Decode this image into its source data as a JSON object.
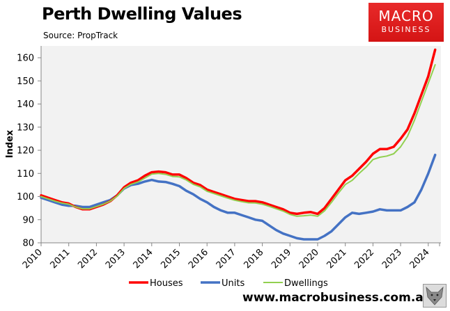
{
  "header": {
    "title": "Perth Dwelling Values",
    "subtitle": "Source: PropTrack",
    "logo_line1": "MACRO",
    "logo_line2": "BUSINESS"
  },
  "footer": {
    "url": "www.macrobusiness.com.au"
  },
  "colors": {
    "houses": "#ff0000",
    "units": "#4472c4",
    "dwellings": "#92d050",
    "plot_bg": "#f2f2f2",
    "axis": "#868686"
  },
  "chart_data": {
    "type": "line",
    "title": "Perth Dwelling Values",
    "subtitle": "Source: PropTrack",
    "xlabel": "",
    "ylabel": "Index",
    "xlim": [
      2010,
      2024.83
    ],
    "ylim": [
      80,
      165
    ],
    "yticks": [
      80,
      90,
      100,
      110,
      120,
      130,
      140,
      150,
      160
    ],
    "xticks": [
      "2010",
      "2011",
      "2012",
      "2013",
      "2014",
      "2015",
      "2016",
      "2017",
      "2018",
      "2019",
      "2020",
      "2021",
      "2022",
      "2023",
      "2024"
    ],
    "grid": false,
    "legend_position": "bottom",
    "x": [
      2010,
      2010.25,
      2010.5,
      2010.75,
      2011,
      2011.25,
      2011.5,
      2011.75,
      2012,
      2012.25,
      2012.5,
      2012.75,
      2013,
      2013.25,
      2013.5,
      2013.75,
      2014,
      2014.25,
      2014.5,
      2014.75,
      2015,
      2015.25,
      2015.5,
      2015.75,
      2016,
      2016.25,
      2016.5,
      2016.75,
      2017,
      2017.25,
      2017.5,
      2017.75,
      2018,
      2018.25,
      2018.5,
      2018.75,
      2019,
      2019.25,
      2019.5,
      2019.75,
      2020,
      2020.25,
      2020.5,
      2020.75,
      2021,
      2021.25,
      2021.5,
      2021.75,
      2022,
      2022.25,
      2022.5,
      2022.75,
      2023,
      2023.25,
      2023.5,
      2023.75,
      2024,
      2024.25
    ],
    "series": [
      {
        "name": "Houses",
        "values": [
          100.5,
          99.5,
          98.5,
          97.5,
          97,
          95.5,
          94.5,
          94.5,
          95.5,
          96.5,
          98,
          100.5,
          104,
          106,
          107,
          109,
          110.5,
          110.8,
          110.5,
          109.5,
          109.5,
          108,
          106,
          105,
          103,
          102,
          101,
          100,
          99,
          98.5,
          98,
          98,
          97.5,
          96.5,
          95.5,
          94.5,
          93,
          92.5,
          93,
          93.3,
          92.5,
          95,
          99,
          103,
          107,
          109,
          112,
          115,
          118.5,
          120.5,
          120.5,
          121.5,
          125,
          129,
          136,
          144,
          152,
          163.5
        ]
      },
      {
        "name": "Units",
        "values": [
          99.5,
          98.5,
          97.5,
          96.5,
          96,
          96,
          95.5,
          95.5,
          96.5,
          97.5,
          98.5,
          100.5,
          103.5,
          105,
          105.5,
          106.5,
          107.2,
          106.5,
          106.3,
          105.5,
          104.5,
          102.5,
          101,
          99,
          97.5,
          95.5,
          94,
          93,
          93,
          92,
          91,
          90,
          89.5,
          87.5,
          85.5,
          84,
          83,
          82,
          81.5,
          81.5,
          81.5,
          83,
          85,
          88,
          91,
          93,
          92.5,
          93,
          93.5,
          94.5,
          94,
          94,
          94,
          95.5,
          97.5,
          103,
          110,
          118
        ]
      },
      {
        "name": "Dwellings",
        "values": [
          100,
          99,
          98,
          97.2,
          96.7,
          95.5,
          94.7,
          94.7,
          95.7,
          96.7,
          98,
          100.2,
          103.5,
          105.3,
          106.3,
          108,
          109.7,
          110,
          109.6,
          108.7,
          108.5,
          107.2,
          105.3,
          104.2,
          102.3,
          101.3,
          100.3,
          99.3,
          98.4,
          97.8,
          97.3,
          97.2,
          96.7,
          95.8,
          94.7,
          93.7,
          92.3,
          91.5,
          91.7,
          92,
          91.5,
          93.8,
          97.5,
          101.5,
          105.2,
          107,
          110,
          112.7,
          116,
          117,
          117.5,
          118.5,
          121.5,
          126,
          133,
          141,
          149,
          157
        ]
      }
    ]
  }
}
